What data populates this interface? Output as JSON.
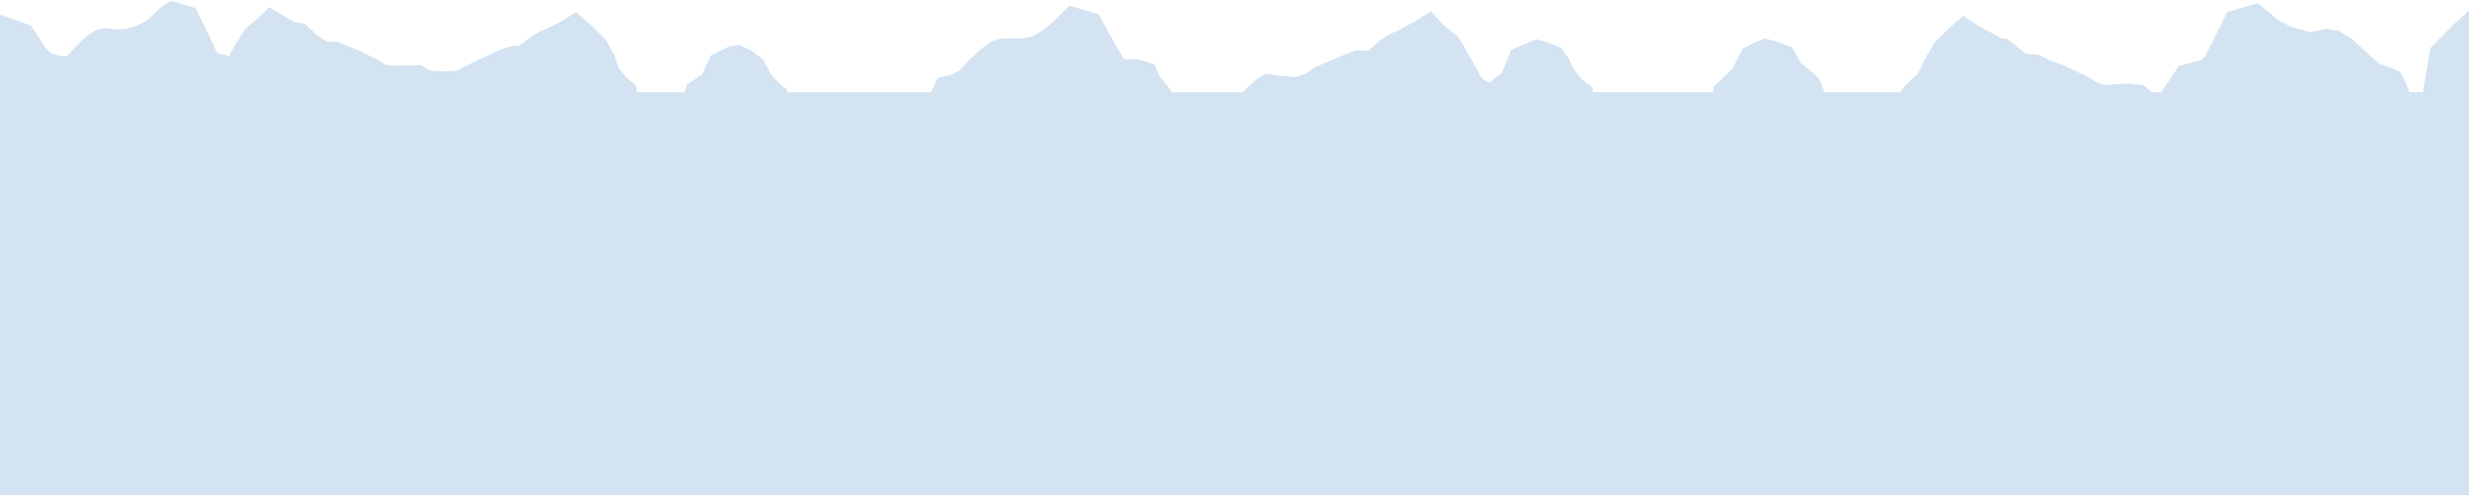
{
  "colors": {
    "background": "#ffffff",
    "skyline_fill": "#d4e3f2"
  },
  "shapes": {
    "decorative_shape": "mountain-skyline-silhouette"
  }
}
